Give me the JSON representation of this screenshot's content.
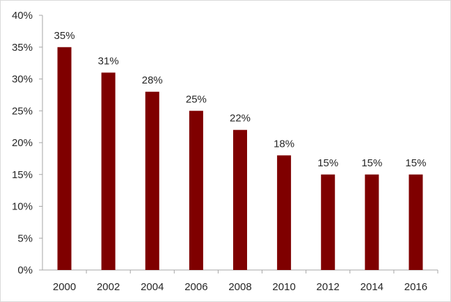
{
  "chart_data": {
    "type": "bar",
    "title": "",
    "xlabel": "",
    "ylabel": "",
    "categories": [
      "2000",
      "2002",
      "2004",
      "2006",
      "2008",
      "2010",
      "2012",
      "2014",
      "2016"
    ],
    "values": [
      35,
      31,
      28,
      25,
      22,
      18,
      15,
      15,
      15
    ],
    "data_labels": [
      "35%",
      "31%",
      "28%",
      "25%",
      "22%",
      "18%",
      "15%",
      "15%",
      "15%"
    ],
    "y_ticks": [
      "0%",
      "5%",
      "10%",
      "15%",
      "20%",
      "25%",
      "30%",
      "35%",
      "40%"
    ],
    "ylim": [
      0,
      40
    ],
    "y_unit": "%",
    "grid": false,
    "legend": "none",
    "bar_color": "#7f0000",
    "axis_color": "#a6a6a6"
  }
}
